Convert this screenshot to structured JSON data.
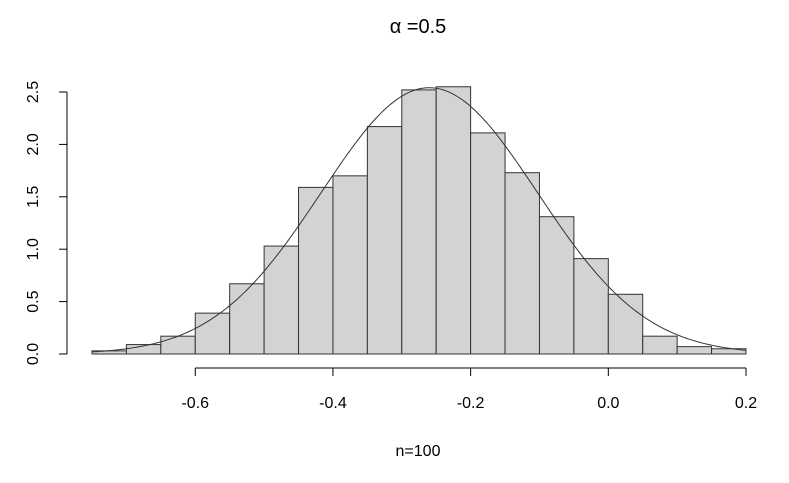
{
  "chart_data": {
    "type": "bar",
    "title_symbol": "α",
    "title_rest": " =0.5",
    "xlabel": "n=100",
    "ylabel": "",
    "xlim": [
      -0.75,
      0.2
    ],
    "ylim": [
      0,
      2.5
    ],
    "x_ticks": [
      {
        "value": -0.6,
        "label": "-0.6"
      },
      {
        "value": -0.4,
        "label": "-0.4"
      },
      {
        "value": -0.2,
        "label": "-0.2"
      },
      {
        "value": 0.0,
        "label": "0.0"
      },
      {
        "value": 0.2,
        "label": "0.2"
      }
    ],
    "y_ticks": [
      {
        "value": 0.0,
        "label": "0.0"
      },
      {
        "value": 0.5,
        "label": "0.5"
      },
      {
        "value": 1.0,
        "label": "1.0"
      },
      {
        "value": 1.5,
        "label": "1.5"
      },
      {
        "value": 2.0,
        "label": "2.0"
      },
      {
        "value": 2.5,
        "label": "2.5"
      }
    ],
    "bin_width": 0.05,
    "bins": [
      {
        "x0": -0.75,
        "value": 0.03
      },
      {
        "x0": -0.7,
        "value": 0.09
      },
      {
        "x0": -0.65,
        "value": 0.17
      },
      {
        "x0": -0.6,
        "value": 0.39
      },
      {
        "x0": -0.55,
        "value": 0.67
      },
      {
        "x0": -0.5,
        "value": 1.03
      },
      {
        "x0": -0.45,
        "value": 1.59
      },
      {
        "x0": -0.4,
        "value": 1.7
      },
      {
        "x0": -0.35,
        "value": 2.17
      },
      {
        "x0": -0.3,
        "value": 2.52
      },
      {
        "x0": -0.25,
        "value": 2.55
      },
      {
        "x0": -0.2,
        "value": 2.11
      },
      {
        "x0": -0.15,
        "value": 1.73
      },
      {
        "x0": -0.1,
        "value": 1.31
      },
      {
        "x0": -0.05,
        "value": 0.91
      },
      {
        "x0": 0.0,
        "value": 0.57
      },
      {
        "x0": 0.05,
        "value": 0.17
      },
      {
        "x0": 0.1,
        "value": 0.07
      },
      {
        "x0": 0.15,
        "value": 0.05
      }
    ],
    "density_curve": {
      "type": "normal",
      "mean": -0.26,
      "sd": 0.157
    },
    "grid": false,
    "bar_fill": "#d3d3d3",
    "bar_stroke": "#333333"
  }
}
